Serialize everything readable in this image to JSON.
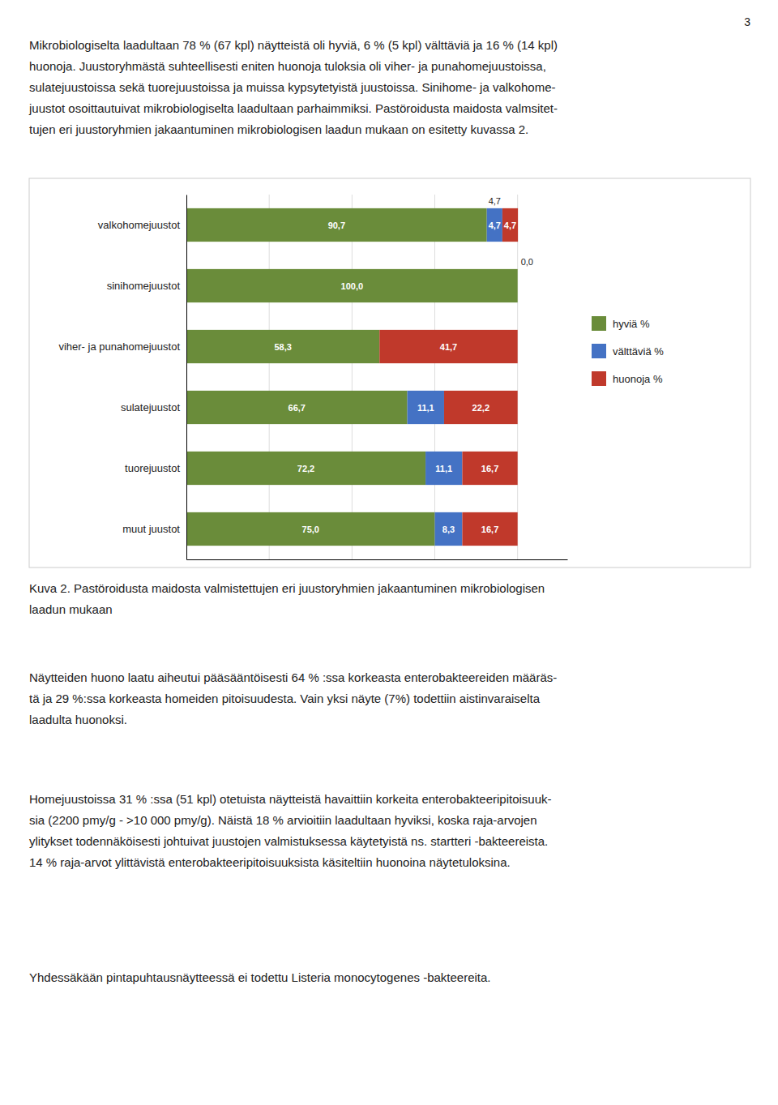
{
  "page_number": "3",
  "para1_lines": [
    "Mikrobiologiselta laadultaan 78 % (67 kpl) näytteistä oli hyviä, 6 % (5 kpl) välttäviä ja 16 % (14 kpl)",
    "huonoja. Juustoryhmästä suhteellisesti eniten huonoja tuloksia oli viher- ja punahomejuustoissa,",
    "sulatejuustoissa sekä tuorejuustoissa ja muissa kypsytetyistä juustoissa. Sinihome- ja valkohome-",
    "juustot osoittautuivat mikrobiologiselta laadultaan parhaimmiksi. Pastöroidusta maidosta valmsitet-",
    "tujen eri juustoryhmien jakaantuminen mikrobiologisen laadun mukaan on esitetty kuvassa 2."
  ],
  "caption_lines": [
    "Kuva 2.  Pastöroidusta maidosta valmistettujen eri juustoryhmien jakaantuminen mikrobiologisen",
    "laadun mukaan"
  ],
  "para2_lines": [
    "Näytteiden huono laatu aiheutui pääsääntöisesti 64 % :ssa korkeasta enterobakteereiden määräs-",
    "tä ja 29 %:ssa korkeasta homeiden pitoisuudesta.   Vain yksi näyte (7%) todettiin aistinvaraiselta",
    "laadulta huonoksi."
  ],
  "para3_lines": [
    "Homejuustoissa 31 % :ssa (51 kpl) otetuista näytteistä havaittiin korkeita enterobakteeripitoisuuk-",
    "sia (2200  pmy/g - >10 000 pmy/g). Näistä 18 % arvioitiin laadultaan hyviksi, koska raja-arvojen",
    "ylitykset todennäköisesti johtuivat juustojen valmistuksessa käytetyistä ns. startteri -bakteereista.",
    "14 % raja-arvot ylittävistä enterobakteeripitoisuuksista käsiteltiin huonoina näytetuloksina."
  ],
  "para4_lines": [
    "Yhdessäkään pintapuhtausnäytteessä ei todettu Listeria monocytogenes -bakteereita."
  ],
  "chart_data": {
    "type": "bar",
    "orientation": "horizontal",
    "stacked": true,
    "categories": [
      "valkohomejuustot",
      "sinihomejuustot",
      "viher- ja punahomejuustot",
      "sulatejuustot",
      "tuorejuustot",
      "muut juustot"
    ],
    "series": [
      {
        "name": "hyviä %",
        "color": "#6a8c3a",
        "values": [
          90.7,
          100.0,
          58.3,
          66.7,
          72.2,
          75.0
        ],
        "value_labels": [
          "90,7",
          "100,0",
          "58,3",
          "66,7",
          "72,2",
          "75,0"
        ]
      },
      {
        "name": "välttäviä %",
        "color": "#4472c4",
        "values": [
          4.7,
          0.0,
          0.0,
          11.1,
          11.1,
          8.3
        ],
        "value_labels": [
          "4,7",
          null,
          null,
          "11,1",
          "11,1",
          "8,3"
        ]
      },
      {
        "name": "huonoja %",
        "color": "#c0392b",
        "values": [
          4.7,
          0.0,
          41.7,
          22.2,
          16.7,
          16.7
        ],
        "value_labels": [
          "4,7",
          "0,0",
          "41,7",
          "22,2",
          "16,7",
          "16,7"
        ]
      }
    ],
    "annotations": [
      {
        "text": "4,7",
        "category": "valkohomejuustot",
        "series": "välttäviä %"
      }
    ],
    "xlim": [
      0,
      115
    ],
    "xticks": [
      25,
      50,
      75,
      100
    ],
    "grid": true,
    "tick_labels": "y",
    "legend": "right",
    "data_labels": true
  }
}
